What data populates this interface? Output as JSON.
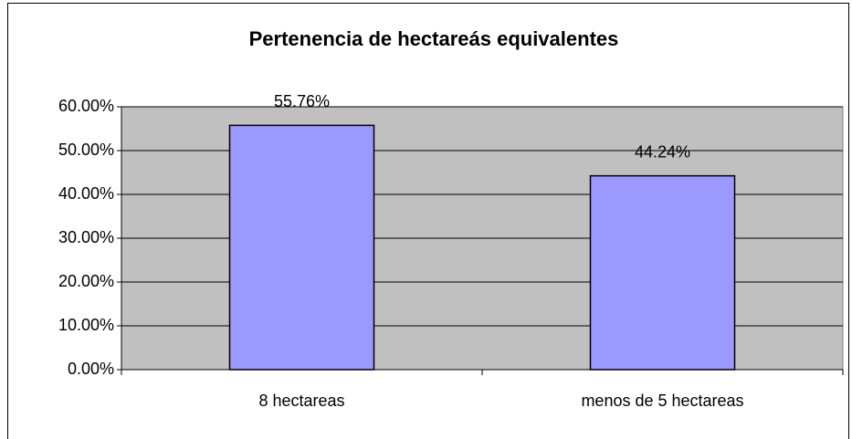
{
  "chart_data": {
    "type": "bar",
    "title": "Pertenencia de hectareás equivalentes",
    "categories": [
      "8 hectareas",
      "menos de 5 hectareas"
    ],
    "values": [
      55.76,
      44.24
    ],
    "value_labels": [
      "55.76%",
      "44.24%"
    ],
    "color": "#9999ff",
    "ylim": [
      0,
      60
    ],
    "yticks": [
      {
        "value": 0,
        "label": "0.00%"
      },
      {
        "value": 10,
        "label": "10.00%"
      },
      {
        "value": 20,
        "label": "20.00%"
      },
      {
        "value": 30,
        "label": "30.00%"
      },
      {
        "value": 40,
        "label": "40.00%"
      },
      {
        "value": 50,
        "label": "50.00%"
      },
      {
        "value": 60,
        "label": "60.00%"
      }
    ],
    "grid": true
  }
}
